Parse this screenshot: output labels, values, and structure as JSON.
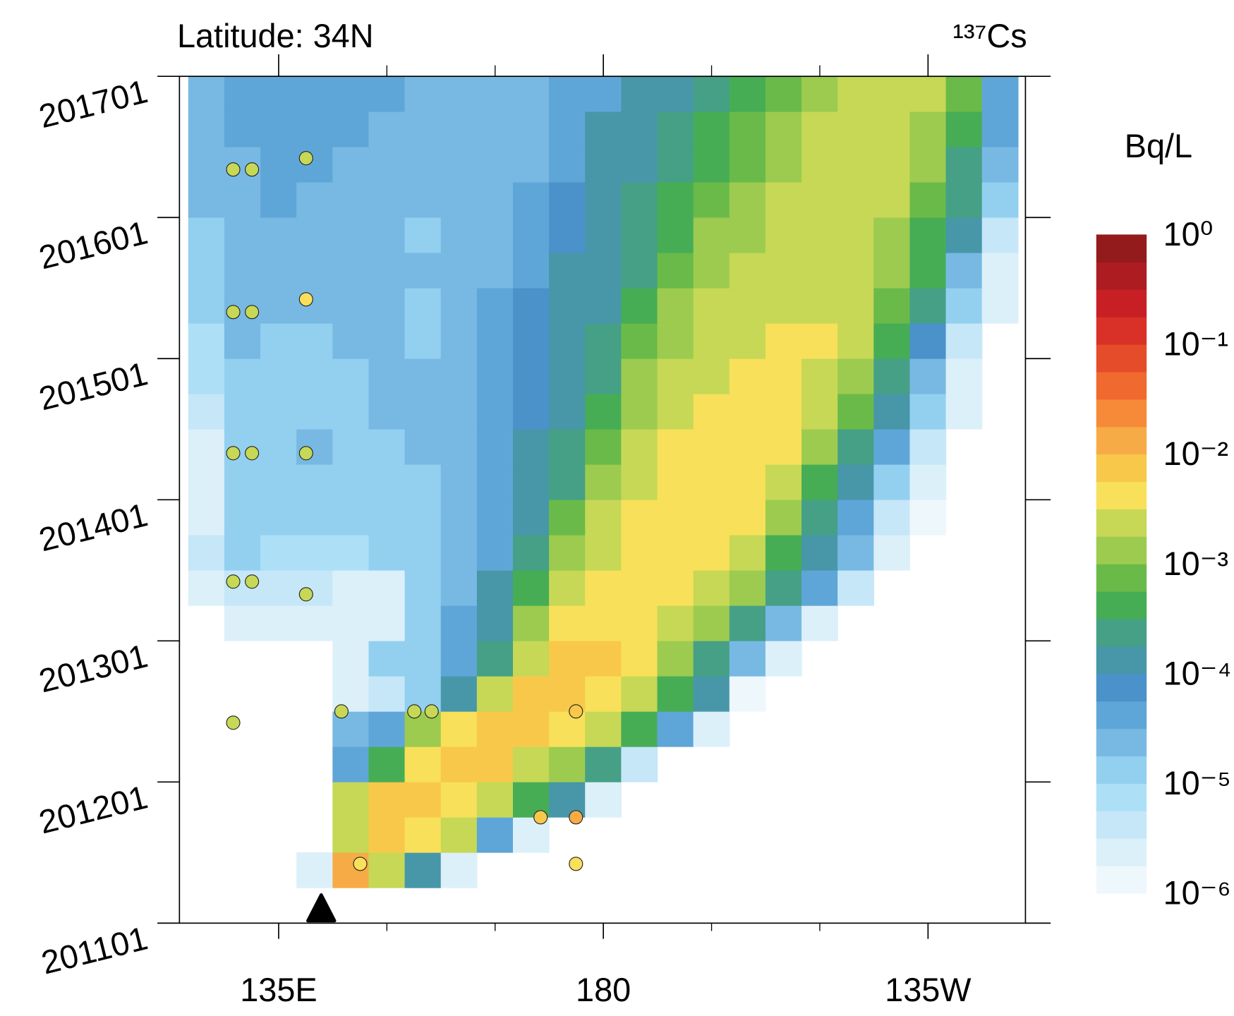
{
  "chart_data": {
    "type": "heatmap",
    "title": "Latitude: 34N",
    "subtitle": "¹³⁷Cs",
    "colorbar_label": "Bq/L",
    "xlim": [
      121.25,
      238.5
    ],
    "ylim": [
      2011,
      2017
    ],
    "xticks": [
      {
        "value": 135,
        "label": "135E"
      },
      180,
      {
        "value": 225,
        "label": "135W"
      }
    ],
    "xminorticks": [
      150,
      165,
      195,
      210
    ],
    "yticks": [
      {
        "value": 2011,
        "label": "201101"
      },
      {
        "value": 2012,
        "label": "201201"
      },
      {
        "value": 2013,
        "label": "201301"
      },
      {
        "value": 2014,
        "label": "201401"
      },
      {
        "value": 2015,
        "label": "201501"
      },
      {
        "value": 2016,
        "label": "201601"
      },
      {
        "value": 2017,
        "label": "201701"
      }
    ],
    "xbins": [
      122.5,
      127.5,
      132.5,
      137.5,
      142.5,
      147.5,
      152.5,
      157.5,
      162.5,
      167.5,
      172.5,
      177.5,
      182.5,
      187.5,
      192.5,
      197.5,
      202.5,
      207.5,
      212.5,
      217.5,
      222.5,
      227.5,
      232.5,
      237.5
    ],
    "ybins": [
      2011,
      2011.25,
      2011.5,
      2011.75,
      2012,
      2012.25,
      2012.5,
      2012.75,
      2013,
      2013.25,
      2013.5,
      2013.75,
      2014,
      2014.25,
      2014.5,
      2014.75,
      2015,
      2015.25,
      2015.5,
      2015.75,
      2016,
      2016.25,
      2016.5,
      2016.75,
      2017
    ],
    "values": [
      [
        null,
        null,
        null,
        null,
        null,
        null,
        null,
        null,
        null,
        null,
        null,
        null,
        null,
        null,
        null,
        null,
        null,
        null,
        null,
        null,
        null,
        null,
        null
      ],
      [
        null,
        null,
        null,
        2e-06,
        0.01,
        0.003,
        0.0001,
        3e-06,
        null,
        null,
        null,
        null,
        null,
        null,
        null,
        null,
        null,
        null,
        null,
        null,
        null,
        null,
        null
      ],
      [
        null,
        null,
        null,
        null,
        0.003,
        0.008,
        0.005,
        0.002,
        5e-05,
        2e-06,
        null,
        null,
        null,
        null,
        null,
        null,
        null,
        null,
        null,
        null,
        null,
        null,
        null
      ],
      [
        null,
        null,
        null,
        null,
        0.002,
        0.006,
        0.007,
        0.005,
        0.002,
        0.0005,
        0.0001,
        3e-06,
        null,
        null,
        null,
        null,
        null,
        null,
        null,
        null,
        null,
        null,
        null
      ],
      [
        null,
        null,
        null,
        null,
        5e-05,
        0.0005,
        0.005,
        0.007,
        0.006,
        0.003,
        0.001,
        0.0002,
        5e-06,
        null,
        null,
        null,
        null,
        null,
        null,
        null,
        null,
        null,
        null
      ],
      [
        null,
        null,
        null,
        null,
        2e-05,
        5e-05,
        0.001,
        0.004,
        0.006,
        0.006,
        0.005,
        0.002,
        0.0004,
        5e-05,
        2e-06,
        null,
        null,
        null,
        null,
        null,
        null,
        null,
        null
      ],
      [
        null,
        null,
        null,
        null,
        2e-06,
        5e-06,
        1e-05,
        0.0001,
        0.002,
        0.006,
        0.007,
        0.005,
        0.002,
        0.0005,
        0.0001,
        1e-06,
        null,
        null,
        null,
        null,
        null,
        null,
        null
      ],
      [
        null,
        null,
        null,
        null,
        2e-06,
        1e-05,
        1e-05,
        5e-05,
        0.0003,
        0.003,
        0.007,
        0.007,
        0.004,
        0.001,
        0.0002,
        2e-05,
        2e-06,
        null,
        null,
        null,
        null,
        null,
        null
      ],
      [
        null,
        2e-06,
        2e-06,
        2e-06,
        2e-06,
        3e-06,
        1e-05,
        5e-05,
        0.0001,
        0.001,
        0.004,
        0.005,
        0.005,
        0.003,
        0.001,
        0.0002,
        3e-05,
        2e-06,
        null,
        null,
        null,
        null,
        null
      ],
      [
        3e-06,
        5e-06,
        5e-06,
        5e-06,
        3e-06,
        3e-06,
        1e-05,
        3e-05,
        0.0001,
        0.0005,
        0.002,
        0.004,
        0.005,
        0.005,
        0.003,
        0.001,
        0.0002,
        5e-05,
        5e-06,
        null,
        null,
        null,
        null
      ],
      [
        4e-06,
        1e-05,
        6e-06,
        6e-06,
        8e-06,
        1e-05,
        1e-05,
        2e-05,
        5e-05,
        0.0002,
        0.001,
        0.003,
        0.005,
        0.005,
        0.005,
        0.002,
        0.0005,
        0.0001,
        2e-05,
        2e-06,
        null,
        null,
        null
      ],
      [
        3e-06,
        1e-05,
        1e-05,
        1e-05,
        1e-05,
        1e-05,
        1.2e-05,
        2e-05,
        5e-05,
        0.0001,
        0.0006,
        0.002,
        0.004,
        0.005,
        0.005,
        0.004,
        0.001,
        0.0003,
        5e-05,
        5e-06,
        1e-06,
        null,
        null
      ],
      [
        2e-06,
        1e-05,
        1.2e-05,
        1.5e-05,
        1.2e-05,
        1.2e-05,
        1.5e-05,
        2e-05,
        5e-05,
        0.0001,
        0.0003,
        0.001,
        0.003,
        0.005,
        0.005,
        0.005,
        0.002,
        0.0005,
        0.0001,
        1e-05,
        2e-06,
        null,
        null
      ],
      [
        3e-06,
        1.5e-05,
        1.2e-05,
        2e-05,
        1.5e-05,
        1.5e-05,
        2e-05,
        2.5e-05,
        5e-05,
        0.0001,
        0.0002,
        0.0006,
        0.002,
        0.004,
        0.005,
        0.005,
        0.004,
        0.001,
        0.0003,
        5e-05,
        4e-06,
        null,
        null
      ],
      [
        5e-06,
        1e-05,
        1e-05,
        1e-05,
        1.2e-05,
        2e-05,
        2e-05,
        2.5e-05,
        4e-05,
        8e-05,
        0.00015,
        0.0004,
        0.0015,
        0.003,
        0.005,
        0.005,
        0.005,
        0.002,
        0.0006,
        0.0001,
        1e-05,
        2e-06,
        null
      ],
      [
        6e-06,
        1.5e-05,
        1e-05,
        1.2e-05,
        1.5e-05,
        2e-05,
        2.5e-05,
        3e-05,
        4e-05,
        6e-05,
        0.0001,
        0.0003,
        0.001,
        0.002,
        0.003,
        0.005,
        0.005,
        0.003,
        0.001,
        0.0002,
        3e-05,
        3e-06,
        null
      ],
      [
        8e-06,
        2e-05,
        1.5e-05,
        1.5e-05,
        2e-05,
        2e-05,
        1.5e-05,
        3e-05,
        4e-05,
        6e-05,
        0.0001,
        0.0002,
        0.0006,
        0.0015,
        0.0025,
        0.003,
        0.005,
        0.005,
        0.002,
        0.0005,
        8e-05,
        5e-06,
        null
      ],
      [
        1e-05,
        2e-05,
        2e-05,
        2e-05,
        2e-05,
        2e-05,
        1.5e-05,
        3e-05,
        4e-05,
        6e-05,
        0.0001,
        0.00015,
        0.0004,
        0.001,
        0.002,
        0.0025,
        0.003,
        0.003,
        0.002,
        0.0008,
        0.0002,
        1e-05,
        2e-06
      ],
      [
        1.2e-05,
        2e-05,
        2e-05,
        3e-05,
        2.5e-05,
        2e-05,
        2e-05,
        2e-05,
        3e-05,
        5e-05,
        0.0001,
        0.00015,
        0.0003,
        0.0006,
        0.0015,
        0.002,
        0.0025,
        0.003,
        0.0025,
        0.001,
        0.0004,
        3e-05,
        3e-06
      ],
      [
        1.5e-05,
        2e-05,
        2.5e-05,
        3e-05,
        2.5e-05,
        2e-05,
        1.5e-05,
        2e-05,
        2.5e-05,
        5e-05,
        8e-05,
        0.00015,
        0.00025,
        0.0005,
        0.001,
        0.0015,
        0.0025,
        0.0025,
        0.0025,
        0.0015,
        0.0005,
        0.0001,
        5e-06
      ],
      [
        2e-05,
        3e-05,
        4e-05,
        3e-05,
        3e-05,
        2.5e-05,
        2e-05,
        2e-05,
        3e-05,
        5e-05,
        6e-05,
        0.00012,
        0.0002,
        0.0004,
        0.0006,
        0.0012,
        0.002,
        0.0025,
        0.0025,
        0.002,
        0.0007,
        0.0002,
        1e-05
      ],
      [
        2e-05,
        3e-05,
        5e-05,
        4e-05,
        3e-05,
        3e-05,
        2e-05,
        2e-05,
        3e-05,
        3e-05,
        5e-05,
        0.00012,
        0.00015,
        0.0003,
        0.0005,
        0.0008,
        0.0015,
        0.0025,
        0.0025,
        0.002,
        0.001,
        0.0003,
        3e-05
      ],
      [
        2.5e-05,
        4e-05,
        5e-05,
        5e-05,
        4e-05,
        3e-05,
        3e-05,
        3e-05,
        3e-05,
        3e-05,
        5e-05,
        0.0001,
        0.00015,
        0.0002,
        0.0004,
        0.0006,
        0.001,
        0.002,
        0.0025,
        0.0025,
        0.0015,
        0.0005,
        4e-05
      ],
      [
        3e-05,
        4e-05,
        5e-05,
        5e-05,
        5e-05,
        4e-05,
        3e-05,
        3e-05,
        3e-05,
        3e-05,
        4e-05,
        5e-05,
        0.0001,
        0.00015,
        0.0003,
        0.0005,
        0.0008,
        0.0015,
        0.0025,
        0.0025,
        0.002,
        0.0006,
        5e-05
      ]
    ],
    "points": {
      "x": [
        128.7,
        131.3,
        138.8,
        128.7,
        131.3,
        138.8,
        128.7,
        131.3,
        138.8,
        128.7,
        131.3,
        138.8,
        128.7,
        143.7,
        153.8,
        156.2,
        176.2,
        171.3,
        176.2,
        146.3,
        176.2
      ],
      "y": [
        2016.34,
        2016.34,
        2016.42,
        2015.33,
        2015.33,
        2015.42,
        2014.33,
        2014.33,
        2014.33,
        2013.42,
        2013.42,
        2013.33,
        2012.42,
        2012.5,
        2012.5,
        2012.5,
        2012.5,
        2011.75,
        2011.75,
        2011.42,
        2011.42
      ],
      "values": [
        0.002,
        0.002,
        0.002,
        0.002,
        0.002,
        0.004,
        0.002,
        0.002,
        0.002,
        0.002,
        0.002,
        0.002,
        0.002,
        0.002,
        0.0025,
        0.002,
        0.008,
        0.008,
        0.01,
        0.004,
        0.004
      ]
    },
    "marker": {
      "x": 140.9,
      "y": 2011
    },
    "colorbar": {
      "log": true,
      "lim": [
        1e-06,
        1
      ],
      "colors": [
        "#eef7fc",
        "#dcf0fa",
        "#c6e7f8",
        "#ade0f7",
        "#93d0f0",
        "#78b9e3",
        "#5fa6d8",
        "#4a92c9",
        "#4797a9",
        "#45a086",
        "#46ad55",
        "#6aba49",
        "#9ccb4f",
        "#c6d856",
        "#f8e05a",
        "#f8c84b",
        "#f7ab46",
        "#f68a39",
        "#f0692f",
        "#e54c2a",
        "#d93027",
        "#c81f25",
        "#ad1c21",
        "#931b1c"
      ],
      "ticks": [
        {
          "value": 1e-06,
          "label": "10⁻⁶"
        },
        {
          "value": 1e-05,
          "label": "10⁻⁵"
        },
        {
          "value": 0.0001,
          "label": "10⁻⁴"
        },
        {
          "value": 0.001,
          "label": "10⁻³"
        },
        {
          "value": 0.01,
          "label": "10⁻²"
        },
        {
          "value": 0.1,
          "label": "10⁻¹"
        },
        {
          "value": 1,
          "label": "10⁰"
        }
      ]
    }
  }
}
